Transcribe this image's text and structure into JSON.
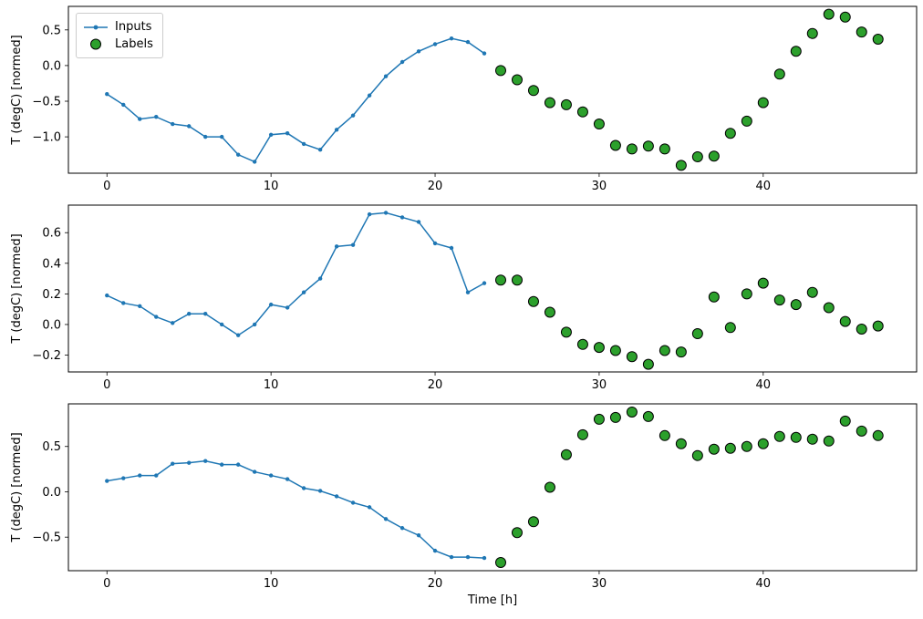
{
  "figure": {
    "background": "#ffffff",
    "xlabel": "Time [h]",
    "ylabel": "T (degC) [normed]",
    "axis_color": "#000000",
    "legend": {
      "position": "upper-left-subplot-1",
      "items": [
        {
          "label": "Inputs",
          "marker": "line-with-dot",
          "color": "#1f77b4"
        },
        {
          "label": "Labels",
          "marker": "circle",
          "color": "#2ca02c",
          "edge_color": "#000000"
        }
      ]
    }
  },
  "chart_data": [
    {
      "type": "line",
      "subplot": 1,
      "ylabel": "T (degC) [normed]",
      "xlim": [
        -2.35,
        49.35
      ],
      "ylim": [
        -1.51,
        0.83
      ],
      "xticks": [
        0,
        10,
        20,
        30,
        40
      ],
      "yticks": [
        -1.0,
        -0.5,
        0.0,
        0.5
      ],
      "grid": false,
      "series": [
        {
          "name": "Inputs",
          "type": "line",
          "color": "#1f77b4",
          "x": [
            0,
            1,
            2,
            3,
            4,
            5,
            6,
            7,
            8,
            9,
            10,
            11,
            12,
            13,
            14,
            15,
            16,
            17,
            18,
            19,
            20,
            21,
            22,
            23
          ],
          "y": [
            -0.4,
            -0.55,
            -0.75,
            -0.72,
            -0.82,
            -0.85,
            -1.0,
            -1.0,
            -1.25,
            -1.35,
            -0.97,
            -0.95,
            -1.1,
            -1.18,
            -0.9,
            -0.7,
            -0.42,
            -0.15,
            0.05,
            0.2,
            0.3,
            0.38,
            0.33,
            0.17
          ]
        },
        {
          "name": "Labels",
          "type": "scatter",
          "color": "#2ca02c",
          "edge": "#000000",
          "x": [
            24,
            25,
            26,
            27,
            28,
            29,
            30,
            31,
            32,
            33,
            34,
            35,
            36,
            37,
            38,
            39,
            40,
            41,
            42,
            43,
            44,
            45,
            46,
            47
          ],
          "y": [
            -0.07,
            -0.2,
            -0.35,
            -0.52,
            -0.55,
            -0.65,
            -0.82,
            -1.12,
            -1.17,
            -1.13,
            -1.17,
            -1.4,
            -1.28,
            -1.27,
            -0.95,
            -0.78,
            -0.52,
            -0.12,
            0.2,
            0.45,
            0.72,
            0.68,
            0.47,
            0.37
          ]
        }
      ]
    },
    {
      "type": "line",
      "subplot": 2,
      "ylabel": "T (degC) [normed]",
      "xlim": [
        -2.35,
        49.35
      ],
      "ylim": [
        -0.31,
        0.78
      ],
      "xticks": [
        0,
        10,
        20,
        30,
        40
      ],
      "yticks": [
        -0.2,
        0.0,
        0.2,
        0.4,
        0.6
      ],
      "grid": false,
      "series": [
        {
          "name": "Inputs",
          "type": "line",
          "color": "#1f77b4",
          "x": [
            0,
            1,
            2,
            3,
            4,
            5,
            6,
            7,
            8,
            9,
            10,
            11,
            12,
            13,
            14,
            15,
            16,
            17,
            18,
            19,
            20,
            21,
            22,
            23
          ],
          "y": [
            0.19,
            0.14,
            0.12,
            0.05,
            0.01,
            0.07,
            0.07,
            0.0,
            -0.07,
            0.0,
            0.13,
            0.11,
            0.21,
            0.3,
            0.51,
            0.52,
            0.72,
            0.73,
            0.7,
            0.67,
            0.53,
            0.5,
            0.21,
            0.27
          ]
        },
        {
          "name": "Labels",
          "type": "scatter",
          "color": "#2ca02c",
          "edge": "#000000",
          "x": [
            24,
            25,
            26,
            27,
            28,
            29,
            30,
            31,
            32,
            33,
            34,
            35,
            36,
            37,
            38,
            39,
            40,
            41,
            42,
            43,
            44,
            45,
            46,
            47
          ],
          "y": [
            0.29,
            0.29,
            0.15,
            0.08,
            -0.05,
            -0.13,
            -0.15,
            -0.17,
            -0.21,
            -0.26,
            -0.17,
            -0.18,
            -0.06,
            0.18,
            -0.02,
            0.2,
            0.27,
            0.16,
            0.13,
            0.21,
            0.11,
            0.02,
            -0.03,
            -0.01
          ]
        }
      ]
    },
    {
      "type": "line",
      "subplot": 3,
      "xlabel": "Time [h]",
      "ylabel": "T (degC) [normed]",
      "xlim": [
        -2.35,
        49.35
      ],
      "ylim": [
        -0.87,
        0.97
      ],
      "xticks": [
        0,
        10,
        20,
        30,
        40
      ],
      "yticks": [
        -0.5,
        0.0,
        0.5
      ],
      "grid": false,
      "series": [
        {
          "name": "Inputs",
          "type": "line",
          "color": "#1f77b4",
          "x": [
            0,
            1,
            2,
            3,
            4,
            5,
            6,
            7,
            8,
            9,
            10,
            11,
            12,
            13,
            14,
            15,
            16,
            17,
            18,
            19,
            20,
            21,
            22,
            23
          ],
          "y": [
            0.12,
            0.15,
            0.18,
            0.18,
            0.31,
            0.32,
            0.34,
            0.3,
            0.3,
            0.22,
            0.18,
            0.14,
            0.04,
            0.01,
            -0.05,
            -0.12,
            -0.17,
            -0.3,
            -0.4,
            -0.48,
            -0.65,
            -0.72,
            -0.72,
            -0.73
          ]
        },
        {
          "name": "Labels",
          "type": "scatter",
          "color": "#2ca02c",
          "edge": "#000000",
          "x": [
            24,
            25,
            26,
            27,
            28,
            29,
            30,
            31,
            32,
            33,
            34,
            35,
            36,
            37,
            38,
            39,
            40,
            41,
            42,
            43,
            44,
            45,
            46,
            47
          ],
          "y": [
            -0.78,
            -0.45,
            -0.33,
            0.05,
            0.41,
            0.63,
            0.8,
            0.82,
            0.88,
            0.83,
            0.62,
            0.53,
            0.4,
            0.47,
            0.48,
            0.5,
            0.53,
            0.61,
            0.6,
            0.58,
            0.56,
            0.78,
            0.67,
            0.62
          ]
        }
      ]
    }
  ]
}
